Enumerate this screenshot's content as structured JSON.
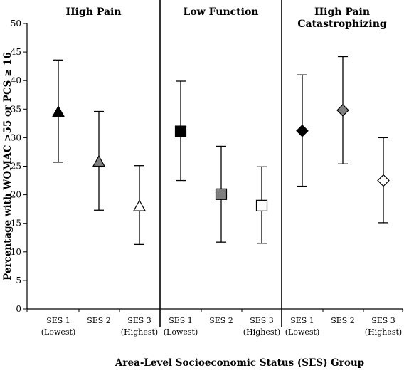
{
  "chart_data": {
    "type": "scatter",
    "title": "",
    "xlabel": "Area-Level Socioeconomic Status (SES) Group",
    "ylabel": "Percentage with WOMAC >55 or PCS ≥ 16",
    "ylim": [
      0,
      50
    ],
    "yticks": [
      0,
      5,
      10,
      15,
      20,
      25,
      30,
      35,
      40,
      45,
      50
    ],
    "grid": false,
    "legend": "none",
    "error_bars": true,
    "panels": [
      {
        "title": [
          "High Pain"
        ],
        "categories": [
          [
            "SES 1",
            "(Lowest)"
          ],
          [
            "SES 2"
          ],
          [
            "SES 3",
            "(Highest)"
          ]
        ],
        "marker": "triangle",
        "points": [
          {
            "value": 34.5,
            "lower": 25.7,
            "upper": 43.6,
            "fill": "#000000"
          },
          {
            "value": 25.8,
            "lower": 17.3,
            "upper": 34.6,
            "fill": "#7f7f7f"
          },
          {
            "value": 18.0,
            "lower": 11.3,
            "upper": 25.1,
            "fill": "#ffffff"
          }
        ]
      },
      {
        "title": [
          "Low Function"
        ],
        "categories": [
          [
            "SES 1",
            "(Lowest)"
          ],
          [
            "SES 2"
          ],
          [
            "SES 3",
            "(Highest)"
          ]
        ],
        "marker": "square",
        "points": [
          {
            "value": 31.1,
            "lower": 22.5,
            "upper": 39.9,
            "fill": "#000000"
          },
          {
            "value": 20.1,
            "lower": 11.7,
            "upper": 28.5,
            "fill": "#7f7f7f"
          },
          {
            "value": 18.1,
            "lower": 11.5,
            "upper": 24.9,
            "fill": "#ffffff"
          }
        ]
      },
      {
        "title": [
          "High Pain",
          "Catastrophizing"
        ],
        "categories": [
          [
            "SES 1",
            "(Lowest)"
          ],
          [
            "SES 2"
          ],
          [
            "SES 3",
            "(Highest)"
          ]
        ],
        "marker": "diamond",
        "points": [
          {
            "value": 31.2,
            "lower": 21.5,
            "upper": 41.0,
            "fill": "#000000"
          },
          {
            "value": 34.8,
            "lower": 25.4,
            "upper": 44.2,
            "fill": "#7f7f7f"
          },
          {
            "value": 22.5,
            "lower": 15.1,
            "upper": 30.0,
            "fill": "#ffffff"
          }
        ]
      }
    ]
  }
}
